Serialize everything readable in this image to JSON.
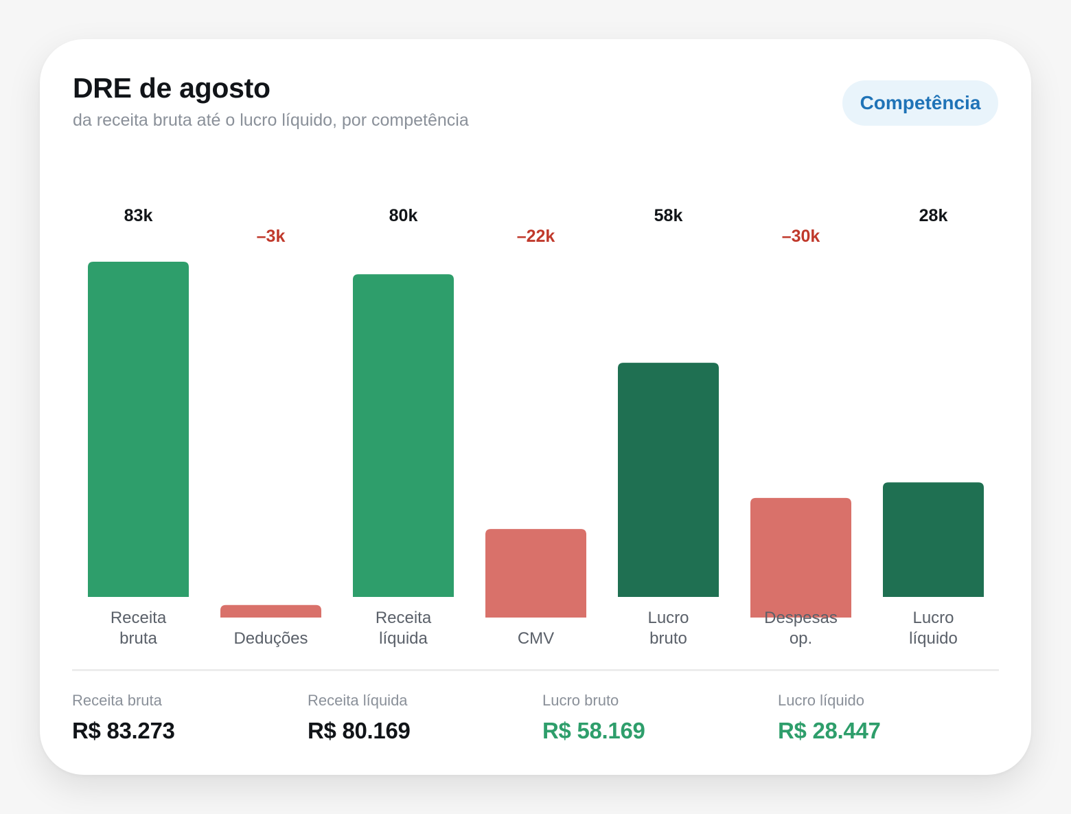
{
  "header": {
    "title": "DRE de agosto",
    "subtitle": "da receita bruta até o lucro líquido, por competência",
    "badge": "Competência"
  },
  "colors": {
    "revenue": "#2e9e6b",
    "profit": "#1f7052",
    "deduction": "#d9716a",
    "negative_text": "#c0392b",
    "badge_text": "#1f73b7",
    "badge_bg": "#e9f4fb"
  },
  "chart_data": {
    "type": "bar",
    "categories": [
      [
        "Receita",
        "bruta"
      ],
      [
        "Deduções"
      ],
      [
        "Receita",
        "líquida"
      ],
      [
        "CMV"
      ],
      [
        "Lucro",
        "bruto"
      ],
      [
        "Despesas",
        "op."
      ],
      [
        "Lucro",
        "líquido"
      ]
    ],
    "values": [
      83273,
      -3104,
      80169,
      -22000,
      58169,
      -29722,
      28447
    ],
    "value_labels": [
      "83k",
      "–3k",
      "80k",
      "–22k",
      "58k",
      "–30k",
      "28k"
    ],
    "kinds": [
      "revenue",
      "deduction",
      "revenue",
      "deduction",
      "profit",
      "deduction",
      "profit"
    ],
    "ylim": [
      -30000,
      83273
    ],
    "grid": false,
    "legend": "none"
  },
  "summary": [
    {
      "label": "Receita bruta",
      "value": "R$ 83.273",
      "positive": false
    },
    {
      "label": "Receita líquida",
      "value": "R$ 80.169",
      "positive": false
    },
    {
      "label": "Lucro bruto",
      "value": "R$ 58.169",
      "positive": true
    },
    {
      "label": "Lucro líquido",
      "value": "R$ 28.447",
      "positive": true
    }
  ]
}
